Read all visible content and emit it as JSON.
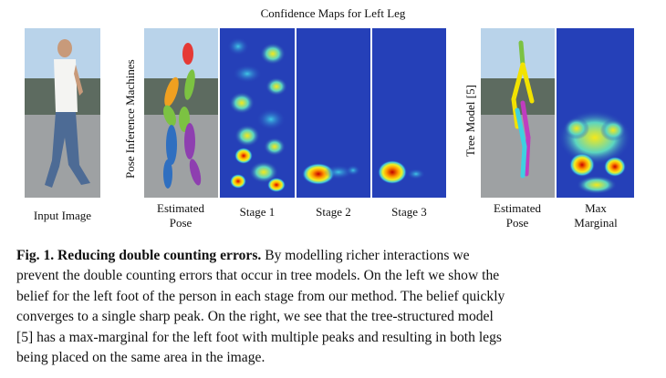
{
  "figure": {
    "title": "Confidence Maps for Left Leg",
    "side_label_left": "Pose Inference Machines",
    "side_label_right": "Tree Model [5]",
    "panels": {
      "input": "Input Image",
      "estimated_pose_1": "Estimated",
      "estimated_pose_2": "Pose",
      "stage1": "Stage 1",
      "stage2": "Stage 2",
      "stage3": "Stage 3",
      "tree_pose_1": "Estimated",
      "tree_pose_2": "Pose",
      "max_marginal_1": "Max",
      "max_marginal_2": "Marginal"
    }
  },
  "caption": {
    "label": "Fig. 1. Reducing double counting errors.",
    "lines": [
      " By modelling richer interactions we",
      "prevent the double counting errors that occur in tree models. On the left we show the",
      "belief for the left foot of the person in each stage from our method. The belief quickly",
      "converges to a single sharp peak. On the right, we see that the tree-structured model",
      "[5] has a max-marginal for the left foot with multiple peaks and resulting in both legs",
      "being placed on the same area in the image."
    ]
  },
  "colors": {
    "heat_background": "#2540b8",
    "limb_red": "#e53935",
    "limb_orange": "#f0a020",
    "limb_green": "#7cc242",
    "limb_blue": "#2f6fc0",
    "limb_purple": "#8e3fb0",
    "limb_yellow": "#f2e200",
    "limb_cyan": "#3fd0e0",
    "limb_magenta": "#c03cc0"
  }
}
